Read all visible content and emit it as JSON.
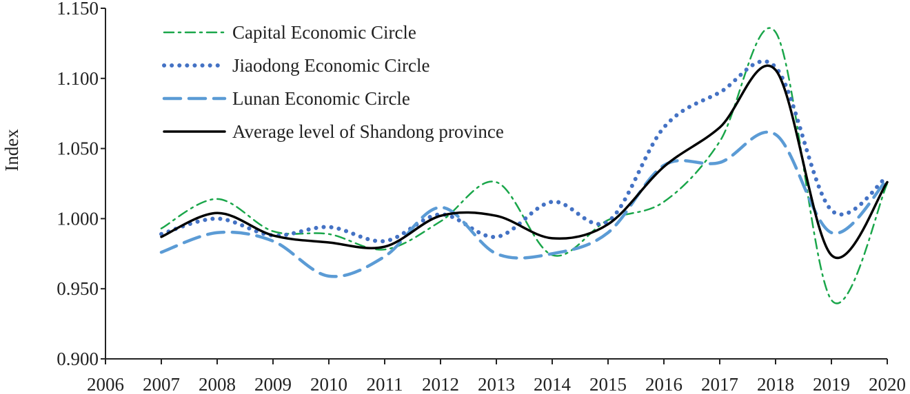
{
  "chart_data": {
    "type": "line",
    "title": "",
    "xlabel": "",
    "ylabel": "Index",
    "x_ticks": [
      "2006",
      "2007",
      "2008",
      "2009",
      "2010",
      "2011",
      "2012",
      "2013",
      "2014",
      "2015",
      "2016",
      "2017",
      "2018",
      "2019",
      "2020"
    ],
    "y_ticks": [
      "0.900",
      "0.950",
      "1.000",
      "1.050",
      "1.100",
      "1.150"
    ],
    "ylim": [
      0.9,
      1.15
    ],
    "xlim": [
      2006,
      2020
    ],
    "grid": false,
    "legend_position": "top-left",
    "series": [
      {
        "name": "Capital Economic Circle",
        "style": "dash-dot",
        "color": "#1aa64a",
        "x": [
          2007,
          2008,
          2009,
          2010,
          2011,
          2012,
          2013,
          2014,
          2015,
          2016,
          2017,
          2018,
          2019,
          2020
        ],
        "values": [
          0.993,
          1.014,
          0.991,
          0.989,
          0.978,
          0.998,
          1.026,
          0.974,
          0.999,
          1.012,
          1.055,
          1.133,
          0.942,
          1.025
        ]
      },
      {
        "name": "Jiaodong Economic Circle",
        "style": "dotted",
        "color": "#4472c4",
        "x": [
          2007,
          2008,
          2009,
          2010,
          2011,
          2012,
          2013,
          2014,
          2015,
          2016,
          2017,
          2018,
          2019,
          2020
        ],
        "values": [
          0.989,
          1.0,
          0.988,
          0.994,
          0.984,
          1.003,
          0.987,
          1.012,
          0.998,
          1.065,
          1.09,
          1.108,
          1.006,
          1.03
        ]
      },
      {
        "name": "Lunan Economic Circle",
        "style": "dashed",
        "color": "#5b9bd5",
        "x": [
          2007,
          2008,
          2009,
          2010,
          2011,
          2012,
          2013,
          2014,
          2015,
          2016,
          2017,
          2018,
          2019,
          2020
        ],
        "values": [
          0.976,
          0.99,
          0.984,
          0.959,
          0.973,
          1.008,
          0.975,
          0.975,
          0.99,
          1.038,
          1.04,
          1.06,
          0.99,
          1.028
        ]
      },
      {
        "name": "Average level of Shandong province",
        "style": "solid",
        "color": "#000000",
        "x": [
          2007,
          2008,
          2009,
          2010,
          2011,
          2012,
          2013,
          2014,
          2015,
          2016,
          2017,
          2018,
          2019,
          2020
        ],
        "values": [
          0.987,
          1.004,
          0.988,
          0.983,
          0.98,
          1.002,
          1.002,
          0.986,
          0.996,
          1.037,
          1.065,
          1.106,
          0.974,
          1.026
        ]
      }
    ]
  }
}
